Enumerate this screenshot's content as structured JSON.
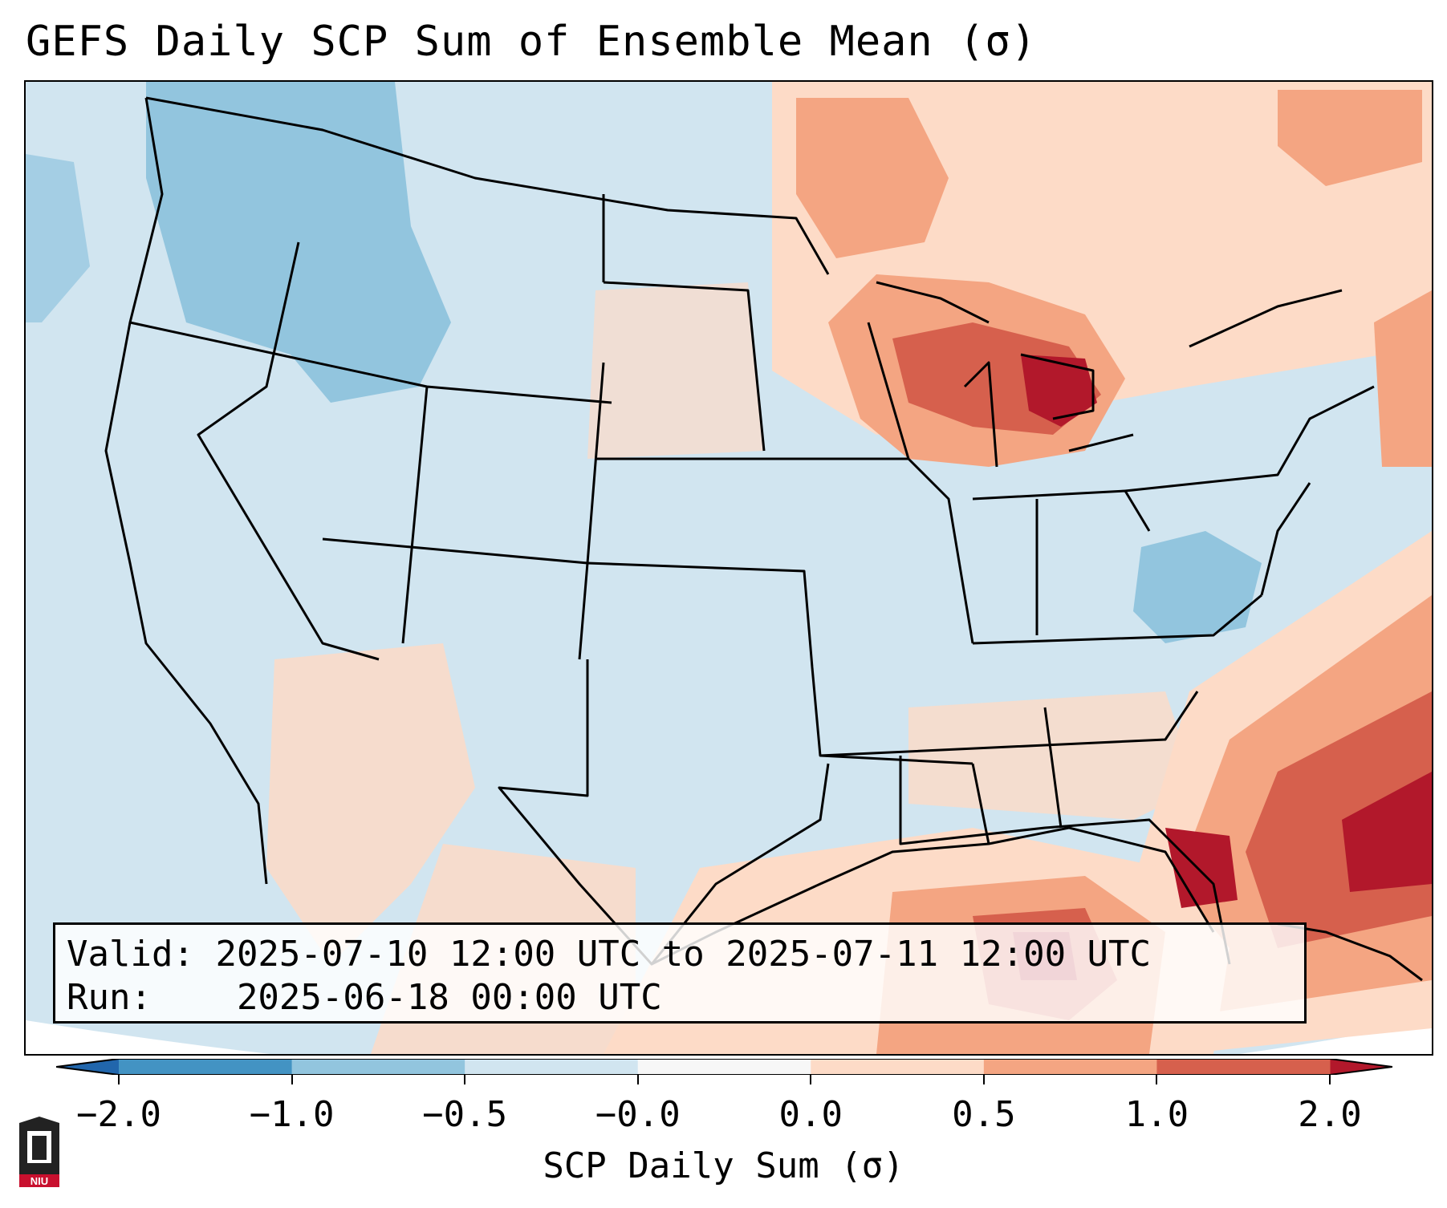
{
  "title": "GEFS Daily SCP Sum of Ensemble Mean (σ)",
  "info": {
    "valid_label": "Valid:",
    "valid_value": "2025-07-10 12:00 UTC to 2025-07-11 12:00 UTC",
    "run_label": "Run:",
    "run_value": "2025-06-18 00:00 UTC"
  },
  "colorbar": {
    "label": "SCP Daily Sum (σ)",
    "ticks": [
      "−2.0",
      "−1.0",
      "−0.5",
      "−0.0",
      "0.0",
      "0.5",
      "1.0",
      "2.0"
    ],
    "colors": [
      "#4393c3",
      "#92c5de",
      "#d1e5f0",
      "#f7f7f7",
      "#fddbc7",
      "#f4a582",
      "#d6604d"
    ],
    "extend_low_color": "#2166ac",
    "extend_high_color": "#b2182b"
  },
  "map": {
    "background_color": "#d1e5f0",
    "outside_color": "#ffffff",
    "region": "Contiguous United States",
    "regions_with_anomalies": [
      {
        "name": "Great Lakes",
        "level": "high"
      },
      {
        "name": "Gulf of Mexico / Florida",
        "level": "high"
      },
      {
        "name": "Western Atlantic",
        "level": "high"
      },
      {
        "name": "Southern Canada",
        "level": "moderate"
      },
      {
        "name": "Pacific Northwest / Idaho",
        "level": "low"
      },
      {
        "name": "Virginia",
        "level": "low"
      }
    ]
  },
  "logo": {
    "text": "NIU"
  }
}
